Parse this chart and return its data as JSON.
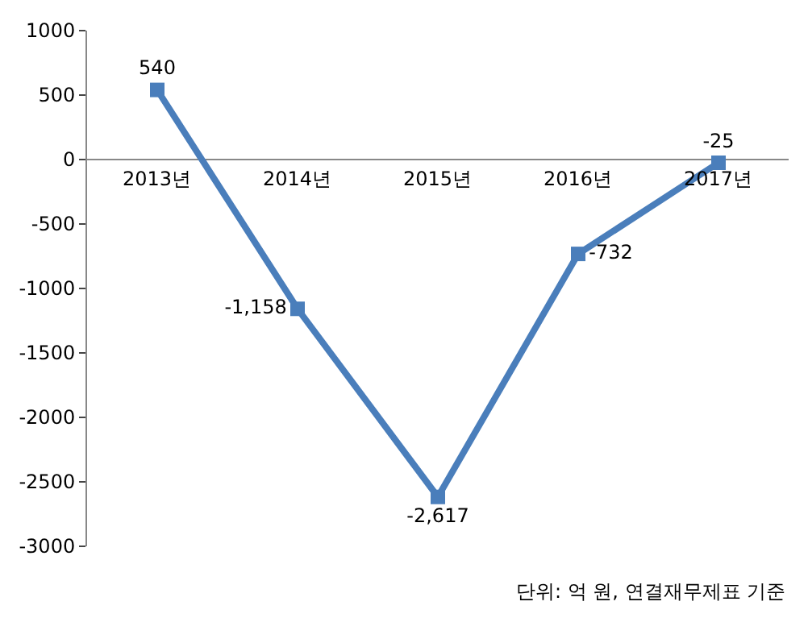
{
  "chart_data": {
    "type": "line",
    "categories": [
      "2013년",
      "2014년",
      "2015년",
      "2016년",
      "2017년"
    ],
    "series": [
      {
        "color": "#4a7ebb",
        "values": [
          540,
          -1158,
          -2617,
          -732,
          -25
        ],
        "value_labels": [
          "540",
          "-1,158",
          "-2,617",
          "-732",
          "-25"
        ]
      }
    ],
    "ylim": [
      -3000,
      1000
    ],
    "yticks": [
      -3000,
      -2500,
      -2000,
      -1500,
      -1000,
      -500,
      0,
      500,
      1000
    ],
    "grid": false,
    "marker": "square",
    "line_style": "solid",
    "annotations": [
      "단위: 억 원, 연결재무제표 기준"
    ]
  }
}
